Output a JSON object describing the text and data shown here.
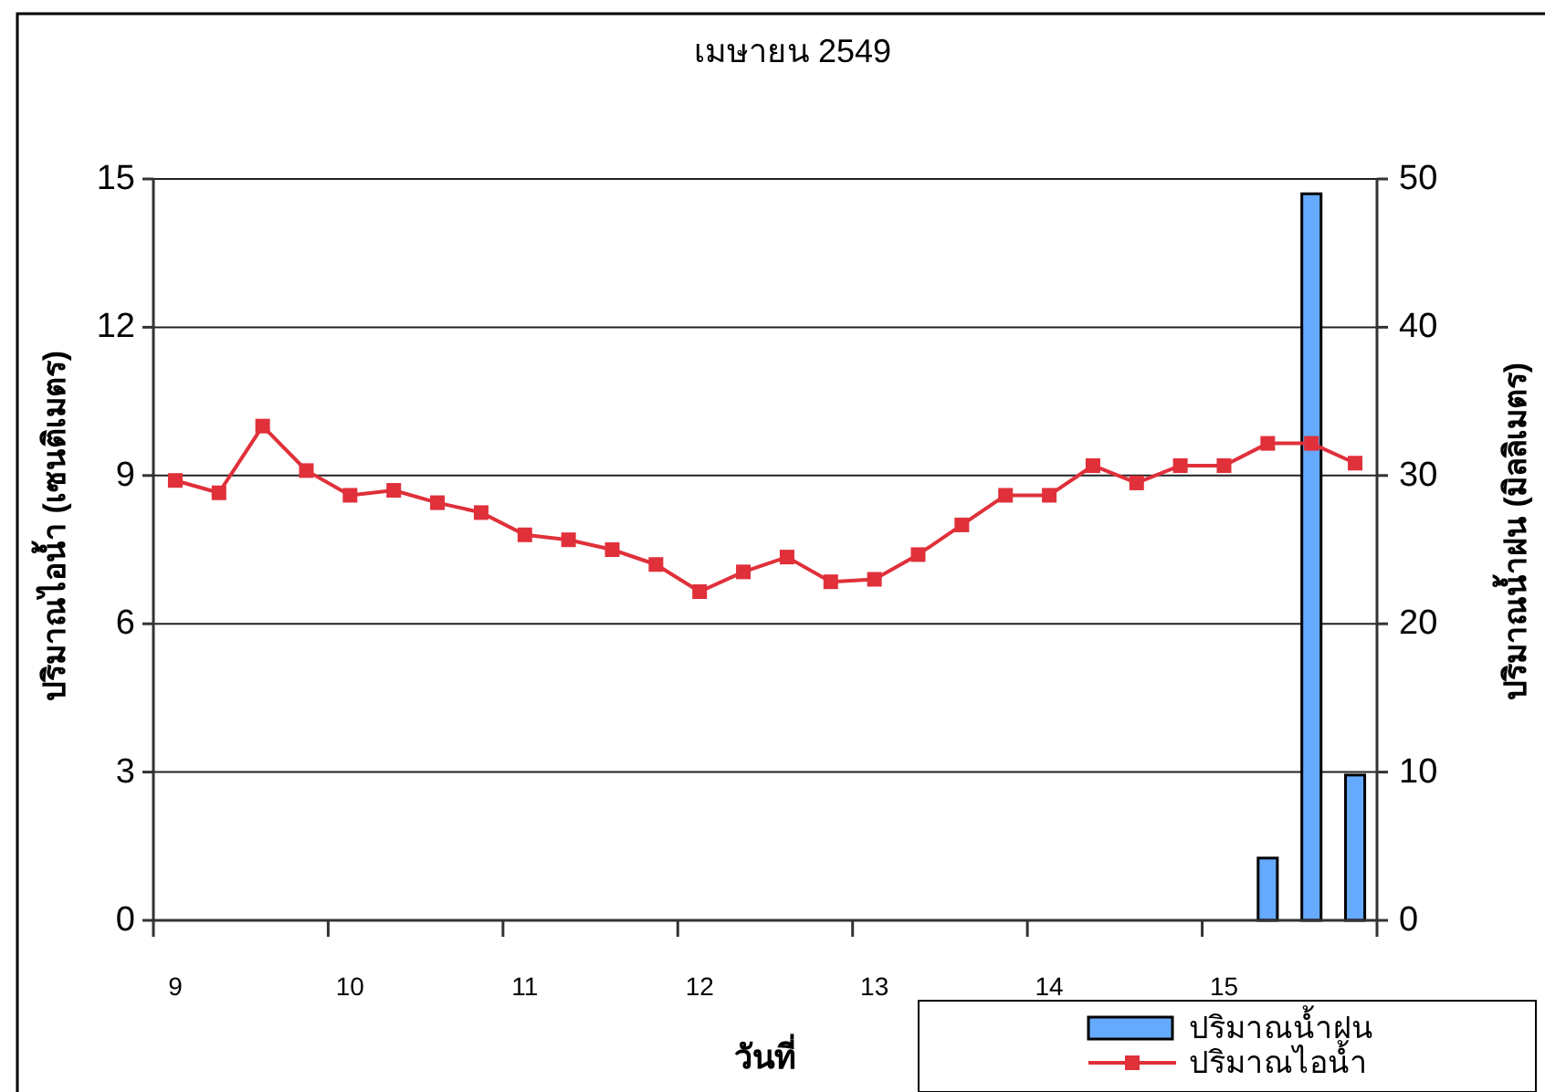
{
  "chart_data": {
    "type": "bar",
    "title": "เมษายน 2549",
    "xlabel": "วันที่",
    "ylabel": "ปริมาณไอน้ำ (เซนติเมตร)",
    "y2label": "ปริมาณน้ำฝน (มิลลิเมตร)",
    "categories": [
      "9",
      null,
      null,
      null,
      "10",
      null,
      null,
      null,
      "11",
      null,
      null,
      null,
      "12",
      null,
      null,
      null,
      "13",
      null,
      null,
      null,
      "14",
      null,
      null,
      null,
      "15",
      null,
      null,
      null
    ],
    "series": [
      {
        "name": "ปริมาณน้ำฝน",
        "axis": "y2",
        "color": "#66aaff",
        "values": [
          null,
          null,
          null,
          null,
          null,
          null,
          null,
          null,
          null,
          null,
          null,
          null,
          null,
          null,
          null,
          null,
          null,
          null,
          null,
          null,
          null,
          null,
          null,
          null,
          null,
          4.2,
          49.0,
          9.8
        ]
      },
      {
        "name": "ปริมาณไอน้ำ",
        "type": "line",
        "color": "#e0303a",
        "marker": "square",
        "values": [
          8.9,
          8.65,
          10.0,
          9.1,
          8.6,
          8.7,
          8.45,
          8.25,
          7.8,
          7.7,
          7.5,
          7.2,
          6.65,
          7.05,
          7.35,
          6.85,
          6.9,
          7.4,
          8.0,
          8.6,
          8.6,
          9.2,
          8.85,
          9.2,
          9.2,
          9.65,
          9.65,
          9.25
        ]
      }
    ],
    "ylim": [
      0,
      15
    ],
    "yticks": [
      0,
      3,
      6,
      9,
      12,
      15
    ],
    "y2lim": [
      0,
      50
    ],
    "y2ticks": [
      0,
      10,
      20,
      30,
      40,
      50
    ],
    "grid": "y",
    "legend": "bottom right"
  }
}
